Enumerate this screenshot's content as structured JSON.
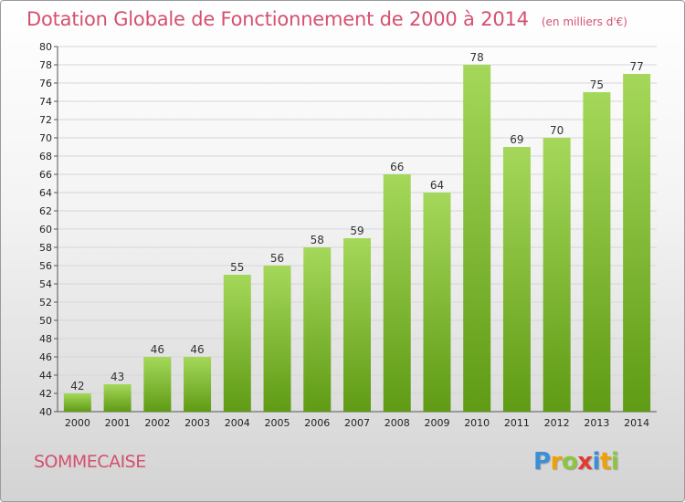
{
  "title": "Dotation Globale de Fonctionnement de 2000 à 2014",
  "subtitle": "(en milliers d'€)",
  "commune": "SOMMECAISE",
  "logo": {
    "letters": [
      "P",
      "r",
      "o",
      "x",
      "i",
      "t",
      "i"
    ],
    "colors": [
      "#3b8fd6",
      "#f0a000",
      "#8cc63f",
      "#e33b2f",
      "#3b8fd6",
      "#f0a000",
      "#8cc63f"
    ]
  },
  "colors": {
    "bar_top": "#a5d85a",
    "bar_bottom": "#5f9b14",
    "text": "#d4506e",
    "axis_text": "#222222"
  },
  "chart_data": {
    "type": "bar",
    "categories": [
      "2000",
      "2001",
      "2002",
      "2003",
      "2004",
      "2005",
      "2006",
      "2007",
      "2008",
      "2009",
      "2010",
      "2011",
      "2012",
      "2013",
      "2014"
    ],
    "values": [
      42,
      43,
      46,
      46,
      55,
      56,
      58,
      59,
      66,
      64,
      78,
      69,
      70,
      75,
      77
    ],
    "ylim": [
      40,
      80
    ],
    "yticks": [
      40,
      42,
      44,
      46,
      48,
      50,
      52,
      54,
      56,
      58,
      60,
      62,
      64,
      66,
      68,
      70,
      72,
      74,
      76,
      78,
      80
    ],
    "grid": true,
    "data_labels": true
  }
}
